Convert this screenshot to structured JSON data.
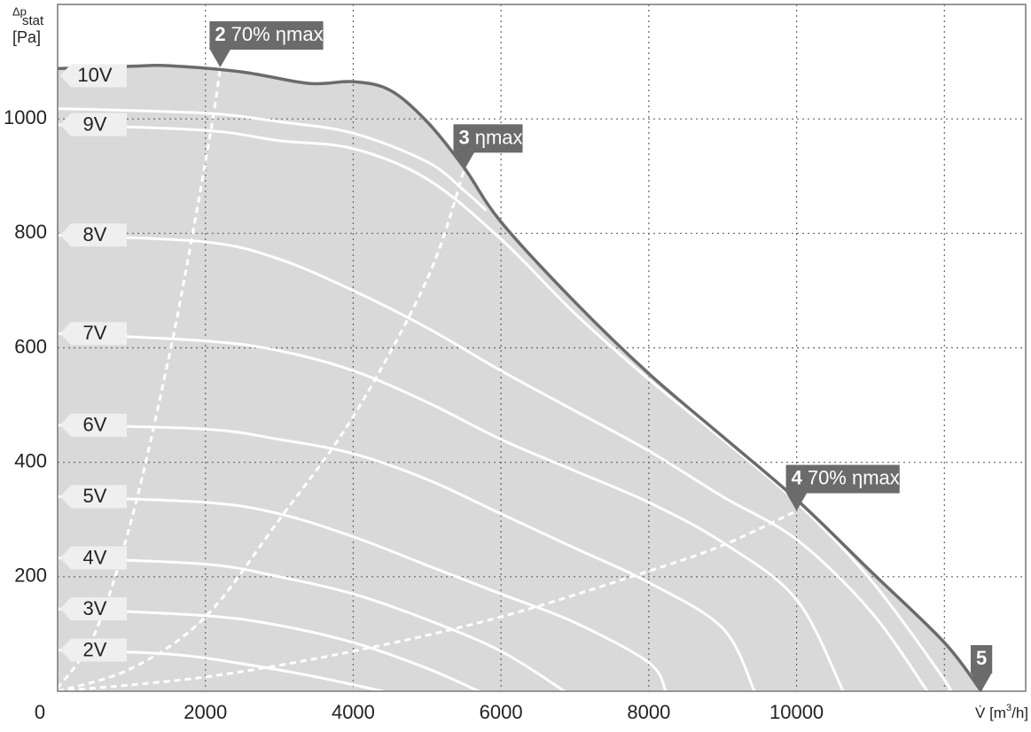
{
  "chart_data": {
    "type": "line",
    "y_label": {
      "main": "Δp",
      "sub": "stat",
      "unit": "[Pa]"
    },
    "x_label": {
      "main": "V̇ [m",
      "sup": "3",
      "end": "/h]"
    },
    "xlim": [
      0,
      13100
    ],
    "ylim": [
      0,
      1200
    ],
    "xticks": [
      0,
      2000,
      4000,
      6000,
      8000,
      10000
    ],
    "xgrid": [
      2000,
      4000,
      6000,
      8000,
      10000,
      12000
    ],
    "yticks": [
      200,
      400,
      600,
      800,
      1000
    ],
    "grid": true,
    "series": [
      {
        "name": "10V",
        "color": "#6b6b6b",
        "fill": "#d9d9d9",
        "x": [
          0,
          1000,
          1500,
          2500,
          3400,
          4000,
          4500,
          5000,
          5500,
          6000,
          7000,
          8000,
          9000,
          10000,
          11000,
          12000,
          12500
        ],
        "values": [
          1088,
          1092,
          1093,
          1082,
          1062,
          1065,
          1050,
          995,
          915,
          820,
          680,
          555,
          445,
          335,
          210,
          85,
          0
        ]
      },
      {
        "color": "#ffffff",
        "x": [
          0,
          2000,
          3000,
          4000,
          5000,
          5500,
          5800
        ],
        "values": [
          1018,
          1010,
          995,
          975,
          925,
          875,
          840
        ]
      },
      {
        "name": "9V",
        "color": "#ffffff",
        "x": [
          0,
          2000,
          3000,
          4000,
          5000,
          6000,
          7000,
          8000,
          9000,
          10000,
          11000,
          12000,
          12050
        ],
        "values": [
          990,
          980,
          962,
          948,
          895,
          790,
          660,
          545,
          440,
          330,
          195,
          20,
          0
        ]
      },
      {
        "name": "8V",
        "color": "#ffffff",
        "x": [
          0,
          2000,
          3000,
          4000,
          5000,
          6000,
          7000,
          8000,
          9000,
          10000,
          11000,
          11770
        ],
        "values": [
          797,
          785,
          755,
          700,
          635,
          560,
          490,
          420,
          340,
          265,
          140,
          0
        ]
      },
      {
        "name": "7V",
        "color": "#ffffff",
        "x": [
          0,
          2000,
          3000,
          4000,
          5000,
          6000,
          7000,
          8000,
          9000,
          10000,
          10630
        ],
        "values": [
          625,
          612,
          595,
          560,
          505,
          440,
          385,
          330,
          260,
          160,
          0
        ]
      },
      {
        "name": "6V",
        "color": "#ffffff",
        "x": [
          0,
          2000,
          3000,
          4000,
          5000,
          6000,
          7000,
          8000,
          9000,
          9430
        ],
        "values": [
          465,
          458,
          440,
          415,
          370,
          310,
          250,
          190,
          110,
          0
        ]
      },
      {
        "name": "5V",
        "color": "#ffffff",
        "x": [
          0,
          2000,
          3000,
          4000,
          5000,
          6000,
          7000,
          8000,
          8230
        ],
        "values": [
          340,
          330,
          310,
          270,
          220,
          170,
          120,
          50,
          0
        ]
      },
      {
        "name": "4V",
        "color": "#ffffff",
        "x": [
          0,
          2000,
          3000,
          4000,
          5000,
          6000,
          6860
        ],
        "values": [
          233,
          222,
          200,
          170,
          125,
          70,
          0
        ]
      },
      {
        "name": "3V",
        "color": "#ffffff",
        "x": [
          0,
          2000,
          3000,
          4000,
          5000,
          5700
        ],
        "values": [
          144,
          132,
          115,
          85,
          40,
          0
        ]
      },
      {
        "name": "2V",
        "color": "#ffffff",
        "x": [
          0,
          1500,
          2500,
          3500,
          4400
        ],
        "values": [
          72,
          65,
          48,
          25,
          0
        ]
      }
    ],
    "efficiency_lines": [
      {
        "color": "#ffffff",
        "x": [
          0,
          500,
          1000,
          1500,
          1800,
          2100,
          2200
        ],
        "values": [
          5,
          100,
          300,
          580,
          780,
          1000,
          1090
        ]
      },
      {
        "color": "#ffffff",
        "x": [
          0,
          1000,
          2000,
          3000,
          4000,
          5000,
          5500
        ],
        "values": [
          0,
          40,
          130,
          300,
          480,
          720,
          910
        ]
      },
      {
        "color": "#ffffff",
        "x": [
          0,
          2000,
          4000,
          6000,
          8000,
          9000,
          10000
        ],
        "values": [
          0,
          25,
          70,
          130,
          210,
          255,
          315
        ]
      }
    ],
    "annotations": [
      {
        "num": "2",
        "text": "70% ηmax",
        "x": 2200,
        "y": 1090
      },
      {
        "num": "3",
        "text": "ηmax",
        "x": 5500,
        "y": 910
      },
      {
        "num": "4",
        "text": "70% ηmax",
        "x": 10000,
        "y": 315
      },
      {
        "num": "5",
        "text": "",
        "x": 12500,
        "y": 0
      }
    ]
  }
}
